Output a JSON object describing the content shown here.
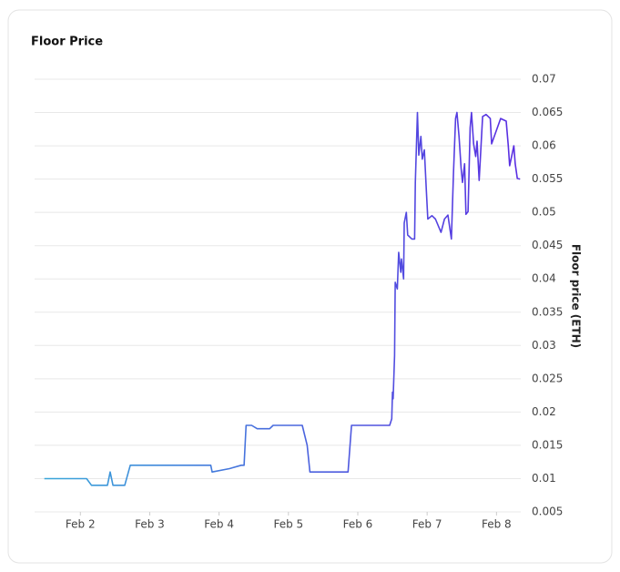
{
  "chart_data": {
    "type": "line",
    "title": "Floor Price",
    "y_axis_label": "Floor price (ETH)",
    "gradient": [
      "#38a6d9",
      "#5a2de2"
    ],
    "grid": true,
    "xlim": [
      1.34,
      8.35
    ],
    "xticks": [
      {
        "value": 2,
        "label": "Feb 2"
      },
      {
        "value": 3,
        "label": "Feb 3"
      },
      {
        "value": 4,
        "label": "Feb 4"
      },
      {
        "value": 5,
        "label": "Feb 5"
      },
      {
        "value": 6,
        "label": "Feb 6"
      },
      {
        "value": 7,
        "label": "Feb 7"
      },
      {
        "value": 8,
        "label": "Feb 8"
      }
    ],
    "ylim": [
      0.005,
      0.07
    ],
    "yticks": [
      0.005,
      0.01,
      0.015,
      0.02,
      0.025,
      0.03,
      0.035,
      0.04,
      0.045,
      0.05,
      0.055,
      0.06,
      0.065,
      0.07
    ],
    "x": [
      1.48,
      2.09,
      2.16,
      2.39,
      2.43,
      2.47,
      2.64,
      2.72,
      3.88,
      3.9,
      4.15,
      4.32,
      4.36,
      4.39,
      4.47,
      4.55,
      4.73,
      4.78,
      5.2,
      5.27,
      5.31,
      5.86,
      5.91,
      6.46,
      6.49,
      6.5,
      6.51,
      6.53,
      6.54,
      6.57,
      6.59,
      6.62,
      6.63,
      6.66,
      6.67,
      6.7,
      6.72,
      6.78,
      6.82,
      6.83,
      6.86,
      6.88,
      6.91,
      6.93,
      6.96,
      6.99,
      7.01,
      7.07,
      7.12,
      7.2,
      7.25,
      7.3,
      7.35,
      7.38,
      7.41,
      7.43,
      7.46,
      7.49,
      7.51,
      7.54,
      7.56,
      7.59,
      7.62,
      7.64,
      7.67,
      7.7,
      7.72,
      7.75,
      7.8,
      7.85,
      7.91,
      7.93,
      8.06,
      8.14,
      8.17,
      8.19,
      8.25,
      8.27,
      8.3,
      8.34
    ],
    "values": [
      0.01,
      0.01,
      0.009,
      0.009,
      0.011,
      0.009,
      0.009,
      0.012,
      0.012,
      0.011,
      0.0115,
      0.012,
      0.012,
      0.018,
      0.018,
      0.0175,
      0.0175,
      0.018,
      0.018,
      0.015,
      0.011,
      0.011,
      0.018,
      0.018,
      0.019,
      0.023,
      0.022,
      0.0285,
      0.0395,
      0.0385,
      0.044,
      0.041,
      0.043,
      0.04,
      0.0484,
      0.05,
      0.0466,
      0.046,
      0.046,
      0.0545,
      0.065,
      0.0586,
      0.0614,
      0.058,
      0.0594,
      0.053,
      0.049,
      0.0495,
      0.049,
      0.047,
      0.049,
      0.0496,
      0.046,
      0.0559,
      0.0641,
      0.065,
      0.0614,
      0.0566,
      0.0545,
      0.0573,
      0.0497,
      0.0501,
      0.0627,
      0.065,
      0.0603,
      0.0584,
      0.0607,
      0.0548,
      0.0644,
      0.0647,
      0.0641,
      0.0603,
      0.0641,
      0.0637,
      0.06,
      0.057,
      0.06,
      0.0573,
      0.0551,
      0.055
    ]
  }
}
